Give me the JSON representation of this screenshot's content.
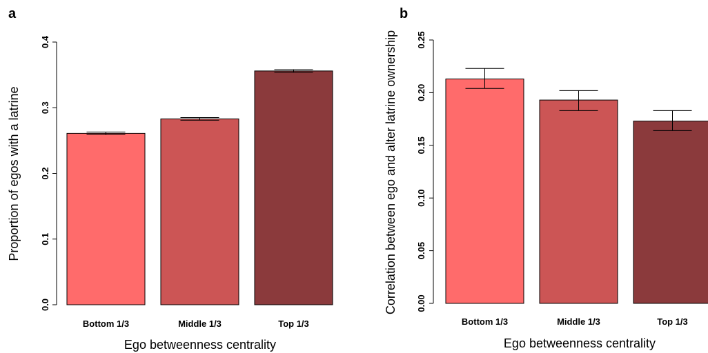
{
  "chart_data": [
    {
      "panel_label": "a",
      "type": "bar",
      "categories": [
        "Bottom 1/3",
        "Middle 1/3",
        "Top 1/3"
      ],
      "values": [
        0.261,
        0.283,
        0.356
      ],
      "error": [
        [
          0.259,
          0.263
        ],
        [
          0.281,
          0.285
        ],
        [
          0.354,
          0.358
        ]
      ],
      "colors": [
        "#ff6b6b",
        "#cc5555",
        "#8b3a3c"
      ],
      "xlabel": "Ego betweenness centrality",
      "ylabel": "Proportion of egos with a latrine",
      "ylim": [
        0,
        0.4
      ],
      "yticks": [
        "0.0",
        "0.1",
        "0.2",
        "0.3",
        "0.4"
      ],
      "ytick_values": [
        0,
        0.1,
        0.2,
        0.3,
        0.4
      ],
      "grid": false
    },
    {
      "panel_label": "b",
      "type": "bar",
      "categories": [
        "Bottom 1/3",
        "Middle 1/3",
        "Top 1/3"
      ],
      "values": [
        0.213,
        0.193,
        0.173
      ],
      "error": [
        [
          0.204,
          0.223
        ],
        [
          0.183,
          0.202
        ],
        [
          0.164,
          0.183
        ]
      ],
      "colors": [
        "#ff6b6b",
        "#cc5555",
        "#8b3a3c"
      ],
      "xlabel": "Ego betweenness centrality",
      "ylabel": "Correlation between ego and alter latrine ownership",
      "ylim": [
        0,
        0.25
      ],
      "yticks": [
        "0.00",
        "0.05",
        "0.10",
        "0.15",
        "0.20",
        "0.25"
      ],
      "ytick_values": [
        0,
        0.05,
        0.1,
        0.15,
        0.2,
        0.25
      ],
      "grid": false
    }
  ]
}
